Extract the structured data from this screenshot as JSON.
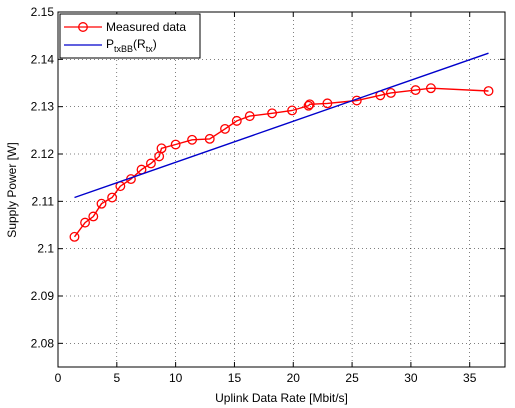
{
  "chart_data": {
    "type": "line",
    "xlabel": "Uplink Data Rate [Mbit/s]",
    "ylabel": "Supply Power [W]",
    "xlim": [
      0,
      38
    ],
    "ylim": [
      2.075,
      2.15
    ],
    "xticks": [
      0,
      5,
      10,
      15,
      20,
      25,
      30,
      35
    ],
    "yticks": [
      2.08,
      2.09,
      2.1,
      2.11,
      2.12,
      2.13,
      2.14,
      2.15
    ],
    "grid": "dotted",
    "legend_position": "top-left",
    "series": [
      {
        "name": "Measured data",
        "color": "#ff0000",
        "marker": "circle",
        "x": [
          1.4,
          2.3,
          3.0,
          3.7,
          4.6,
          5.3,
          6.2,
          7.1,
          7.9,
          8.6,
          8.8,
          10.0,
          11.4,
          12.9,
          14.2,
          15.2,
          16.3,
          18.2,
          19.9,
          21.3,
          21.4,
          22.9,
          25.4,
          27.4,
          28.3,
          30.4,
          31.7,
          36.6
        ],
        "y": [
          2.1025,
          2.1055,
          2.1068,
          2.1095,
          2.1108,
          2.1132,
          2.1147,
          2.1167,
          2.118,
          2.1195,
          2.1212,
          2.122,
          2.123,
          2.1232,
          2.1253,
          2.127,
          2.128,
          2.1286,
          2.1292,
          2.1302,
          2.1305,
          2.1307,
          2.1313,
          2.1324,
          2.1329,
          2.1335,
          2.1339,
          2.1333
        ]
      },
      {
        "name": "P_txBB(R_tx)",
        "color": "#0000cc",
        "marker": "none",
        "x": [
          1.4,
          36.6
        ],
        "y": [
          2.1108,
          2.1413
        ]
      }
    ],
    "legend": {
      "measured": "Measured data",
      "model_main": "P",
      "model_sub1": "txBB",
      "model_paren_open": "(R",
      "model_sub2": "tx",
      "model_paren_close": ")"
    }
  }
}
